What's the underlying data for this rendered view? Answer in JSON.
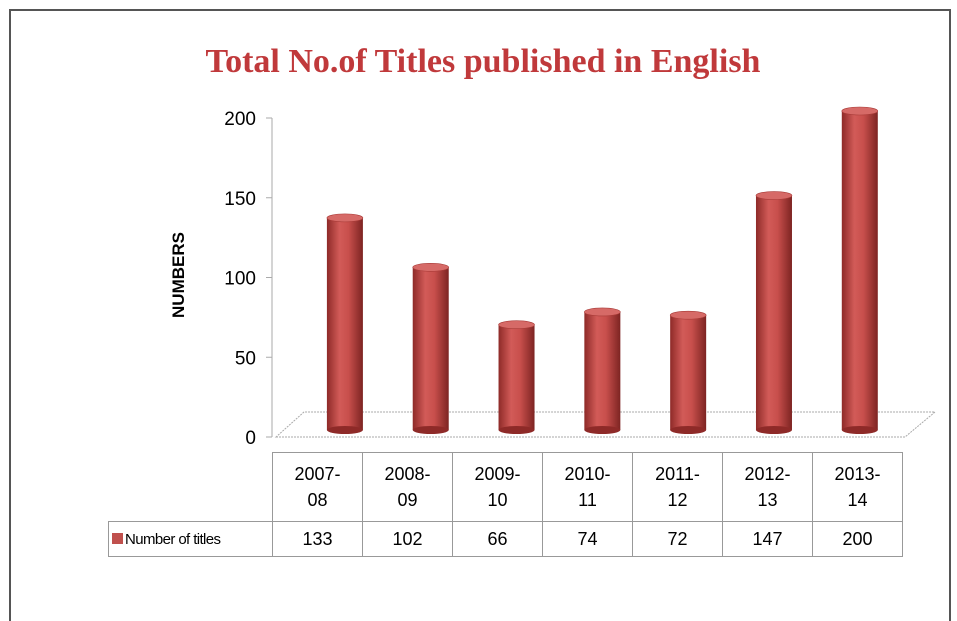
{
  "chart_data": {
    "type": "bar",
    "title": "Total No.of Titles published in English",
    "y_label": "NUMBERS",
    "categories": [
      "2007-08",
      "2008-09",
      "2009-10",
      "2010-11",
      "2011-12",
      "2012-13",
      "2013-14"
    ],
    "series": [
      {
        "name": "Number of titles",
        "color": "#c0504d",
        "values": [
          133,
          102,
          66,
          74,
          72,
          147,
          200
        ]
      }
    ],
    "ylim": [
      0,
      200
    ],
    "yticks": [
      0,
      50,
      100,
      150,
      200
    ],
    "grid": false
  }
}
